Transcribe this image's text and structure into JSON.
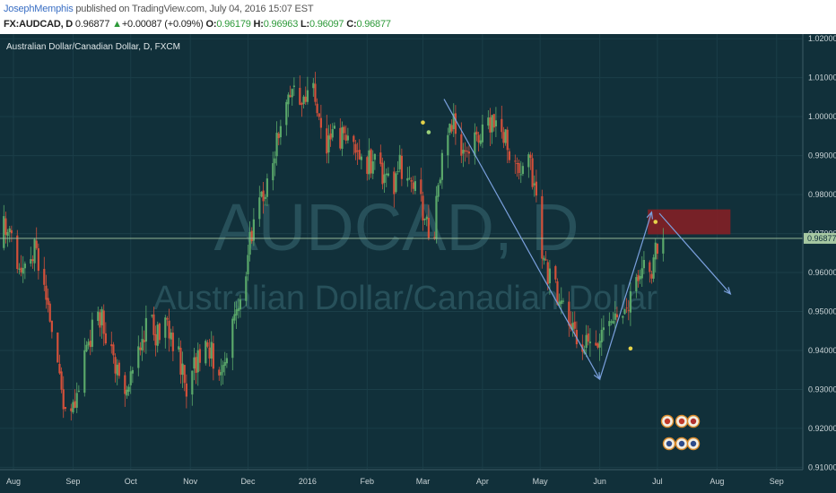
{
  "header": {
    "author": "JosephMemphis",
    "published": "published on TradingView.com, July 04, 2016 15:07 EST",
    "symbol": "FX:AUDCAD, D",
    "price": "0.96877",
    "change_arrow": "▲",
    "change": "+0.00087 (+0.09%)",
    "o_label": "O:",
    "o_value": "0.96179",
    "h_label": "H:",
    "h_value": "0.96963",
    "l_label": "L:",
    "l_value": "0.96097",
    "c_label": "C:",
    "c_value": "0.96877"
  },
  "chart_data": {
    "type": "candlestick",
    "symbol_label": "Australian Dollar/Canadian Dollar, D, FXCM",
    "watermark": "AUDCAD, D",
    "watermark_sub": "Australian Dollar/Canadian Dollar",
    "x_ticks": [
      "Aug",
      "Sep",
      "Oct",
      "Nov",
      "Dec",
      "2016",
      "Feb",
      "Mar",
      "Apr",
      "May",
      "Jun",
      "Jul",
      "Aug",
      "Sep"
    ],
    "y_ticks": [
      "1.02000",
      "1.01000",
      "1.00000",
      "0.99000",
      "0.98000",
      "0.97000",
      "0.96000",
      "0.95000",
      "0.94000",
      "0.93000",
      "0.92000",
      "0.91000"
    ],
    "ylim": [
      0.9094,
      1.0212
    ],
    "last_price": 0.96877,
    "last_price_label": "0.96877",
    "close_path": [
      {
        "x": "2015-07-23",
        "y": 0.963
      },
      {
        "x": "2015-07-27",
        "y": 0.972
      },
      {
        "x": "2015-07-31",
        "y": 0.968
      },
      {
        "x": "2015-08-06",
        "y": 0.96
      },
      {
        "x": "2015-08-12",
        "y": 0.966
      },
      {
        "x": "2015-08-18",
        "y": 0.955
      },
      {
        "x": "2015-08-22",
        "y": 0.944
      },
      {
        "x": "2015-08-26",
        "y": 0.93
      },
      {
        "x": "2015-08-30",
        "y": 0.921
      },
      {
        "x": "2015-09-04",
        "y": 0.93
      },
      {
        "x": "2015-09-10",
        "y": 0.944
      },
      {
        "x": "2015-09-16",
        "y": 0.949
      },
      {
        "x": "2015-09-22",
        "y": 0.937
      },
      {
        "x": "2015-09-28",
        "y": 0.928
      },
      {
        "x": "2015-10-02",
        "y": 0.935
      },
      {
        "x": "2015-10-06",
        "y": 0.942
      },
      {
        "x": "2015-10-10",
        "y": 0.948
      },
      {
        "x": "2015-10-14",
        "y": 0.944
      },
      {
        "x": "2015-10-20",
        "y": 0.947
      },
      {
        "x": "2015-10-26",
        "y": 0.938
      },
      {
        "x": "2015-10-30",
        "y": 0.931
      },
      {
        "x": "2015-11-04",
        "y": 0.937
      },
      {
        "x": "2015-11-10",
        "y": 0.941
      },
      {
        "x": "2015-11-16",
        "y": 0.935
      },
      {
        "x": "2015-11-20",
        "y": 0.94
      },
      {
        "x": "2015-11-25",
        "y": 0.95
      },
      {
        "x": "2015-11-28",
        "y": 0.956
      },
      {
        "x": "2015-12-02",
        "y": 0.968
      },
      {
        "x": "2015-12-06",
        "y": 0.975
      },
      {
        "x": "2015-12-10",
        "y": 0.982
      },
      {
        "x": "2015-12-14",
        "y": 0.99
      },
      {
        "x": "2015-12-18",
        "y": 0.996
      },
      {
        "x": "2015-12-22",
        "y": 1.004
      },
      {
        "x": "2015-12-26",
        "y": 1.008
      },
      {
        "x": "2015-12-30",
        "y": 1.003
      },
      {
        "x": "2016-01-02",
        "y": 1.01
      },
      {
        "x": "2016-01-06",
        "y": 1.001
      },
      {
        "x": "2016-01-10",
        "y": 0.99
      },
      {
        "x": "2016-01-14",
        "y": 0.996
      },
      {
        "x": "2016-01-18",
        "y": 0.993
      },
      {
        "x": "2016-01-22",
        "y": 0.998
      },
      {
        "x": "2016-01-26",
        "y": 0.992
      },
      {
        "x": "2016-01-30",
        "y": 0.987
      },
      {
        "x": "2016-02-04",
        "y": 0.989
      },
      {
        "x": "2016-02-09",
        "y": 0.985
      },
      {
        "x": "2016-02-14",
        "y": 0.981
      },
      {
        "x": "2016-02-18",
        "y": 0.988
      },
      {
        "x": "2016-02-23",
        "y": 0.984
      },
      {
        "x": "2016-02-28",
        "y": 0.979
      },
      {
        "x": "2016-03-03",
        "y": 0.972
      },
      {
        "x": "2016-03-06",
        "y": 0.966
      },
      {
        "x": "2016-03-09",
        "y": 0.982
      },
      {
        "x": "2016-03-13",
        "y": 0.994
      },
      {
        "x": "2016-03-17",
        "y": 0.998
      },
      {
        "x": "2016-03-21",
        "y": 0.993
      },
      {
        "x": "2016-03-25",
        "y": 0.99
      },
      {
        "x": "2016-03-29",
        "y": 0.995
      },
      {
        "x": "2016-04-03",
        "y": 0.997
      },
      {
        "x": "2016-04-08",
        "y": 0.999
      },
      {
        "x": "2016-04-13",
        "y": 0.995
      },
      {
        "x": "2016-04-17",
        "y": 0.989
      },
      {
        "x": "2016-04-21",
        "y": 0.983
      },
      {
        "x": "2016-04-25",
        "y": 0.989
      },
      {
        "x": "2016-04-29",
        "y": 0.978
      },
      {
        "x": "2016-05-02",
        "y": 0.964
      },
      {
        "x": "2016-05-06",
        "y": 0.958
      },
      {
        "x": "2016-05-10",
        "y": 0.955
      },
      {
        "x": "2016-05-14",
        "y": 0.95
      },
      {
        "x": "2016-05-18",
        "y": 0.944
      },
      {
        "x": "2016-05-22",
        "y": 0.94
      },
      {
        "x": "2016-05-26",
        "y": 0.941
      },
      {
        "x": "2016-05-30",
        "y": 0.939
      },
      {
        "x": "2016-06-03",
        "y": 0.946
      },
      {
        "x": "2016-06-07",
        "y": 0.95
      },
      {
        "x": "2016-06-11",
        "y": 0.945
      },
      {
        "x": "2016-06-14",
        "y": 0.949
      },
      {
        "x": "2016-06-18",
        "y": 0.955
      },
      {
        "x": "2016-06-21",
        "y": 0.957
      },
      {
        "x": "2016-06-24",
        "y": 0.963
      },
      {
        "x": "2016-06-27",
        "y": 0.959
      },
      {
        "x": "2016-06-30",
        "y": 0.965
      },
      {
        "x": "2016-07-04",
        "y": 0.96877
      }
    ],
    "zone": {
      "x_start": "2016-06-26",
      "x_end": "2016-08-08",
      "y_low": 0.9698,
      "y_high": 0.9762,
      "color": "#8a1e24"
    },
    "arrows": [
      {
        "from": {
          "x": "2016-03-12",
          "y": 1.0045
        },
        "to": {
          "x": "2016-06-01",
          "y": 0.9326
        }
      },
      {
        "from": {
          "x": "2016-06-01",
          "y": 0.9326
        },
        "to": {
          "x": "2016-06-28",
          "y": 0.9755
        }
      },
      {
        "from": {
          "x": "2016-07-02",
          "y": 0.9752
        },
        "to": {
          "x": "2016-08-08",
          "y": 0.9545
        }
      }
    ],
    "markers": [
      {
        "x": "2016-03-01",
        "y": 0.9985,
        "color": "#e6d34a"
      },
      {
        "x": "2016-03-04",
        "y": 0.996,
        "color": "#9ad07a"
      },
      {
        "x": "2016-06-17",
        "y": 0.9405,
        "color": "#e6d34a"
      },
      {
        "x": "2016-06-30",
        "y": 0.973,
        "color": "#e6d34a"
      }
    ],
    "colors": {
      "background": "#11303a",
      "up": "#5aa86a",
      "down": "#d3503a",
      "grid": "#1b3e48",
      "price_line": "#a7c8a2",
      "arrow": "#7aa0dd",
      "axis_text": "#c9d3d6",
      "watermark": "#27505a"
    }
  }
}
